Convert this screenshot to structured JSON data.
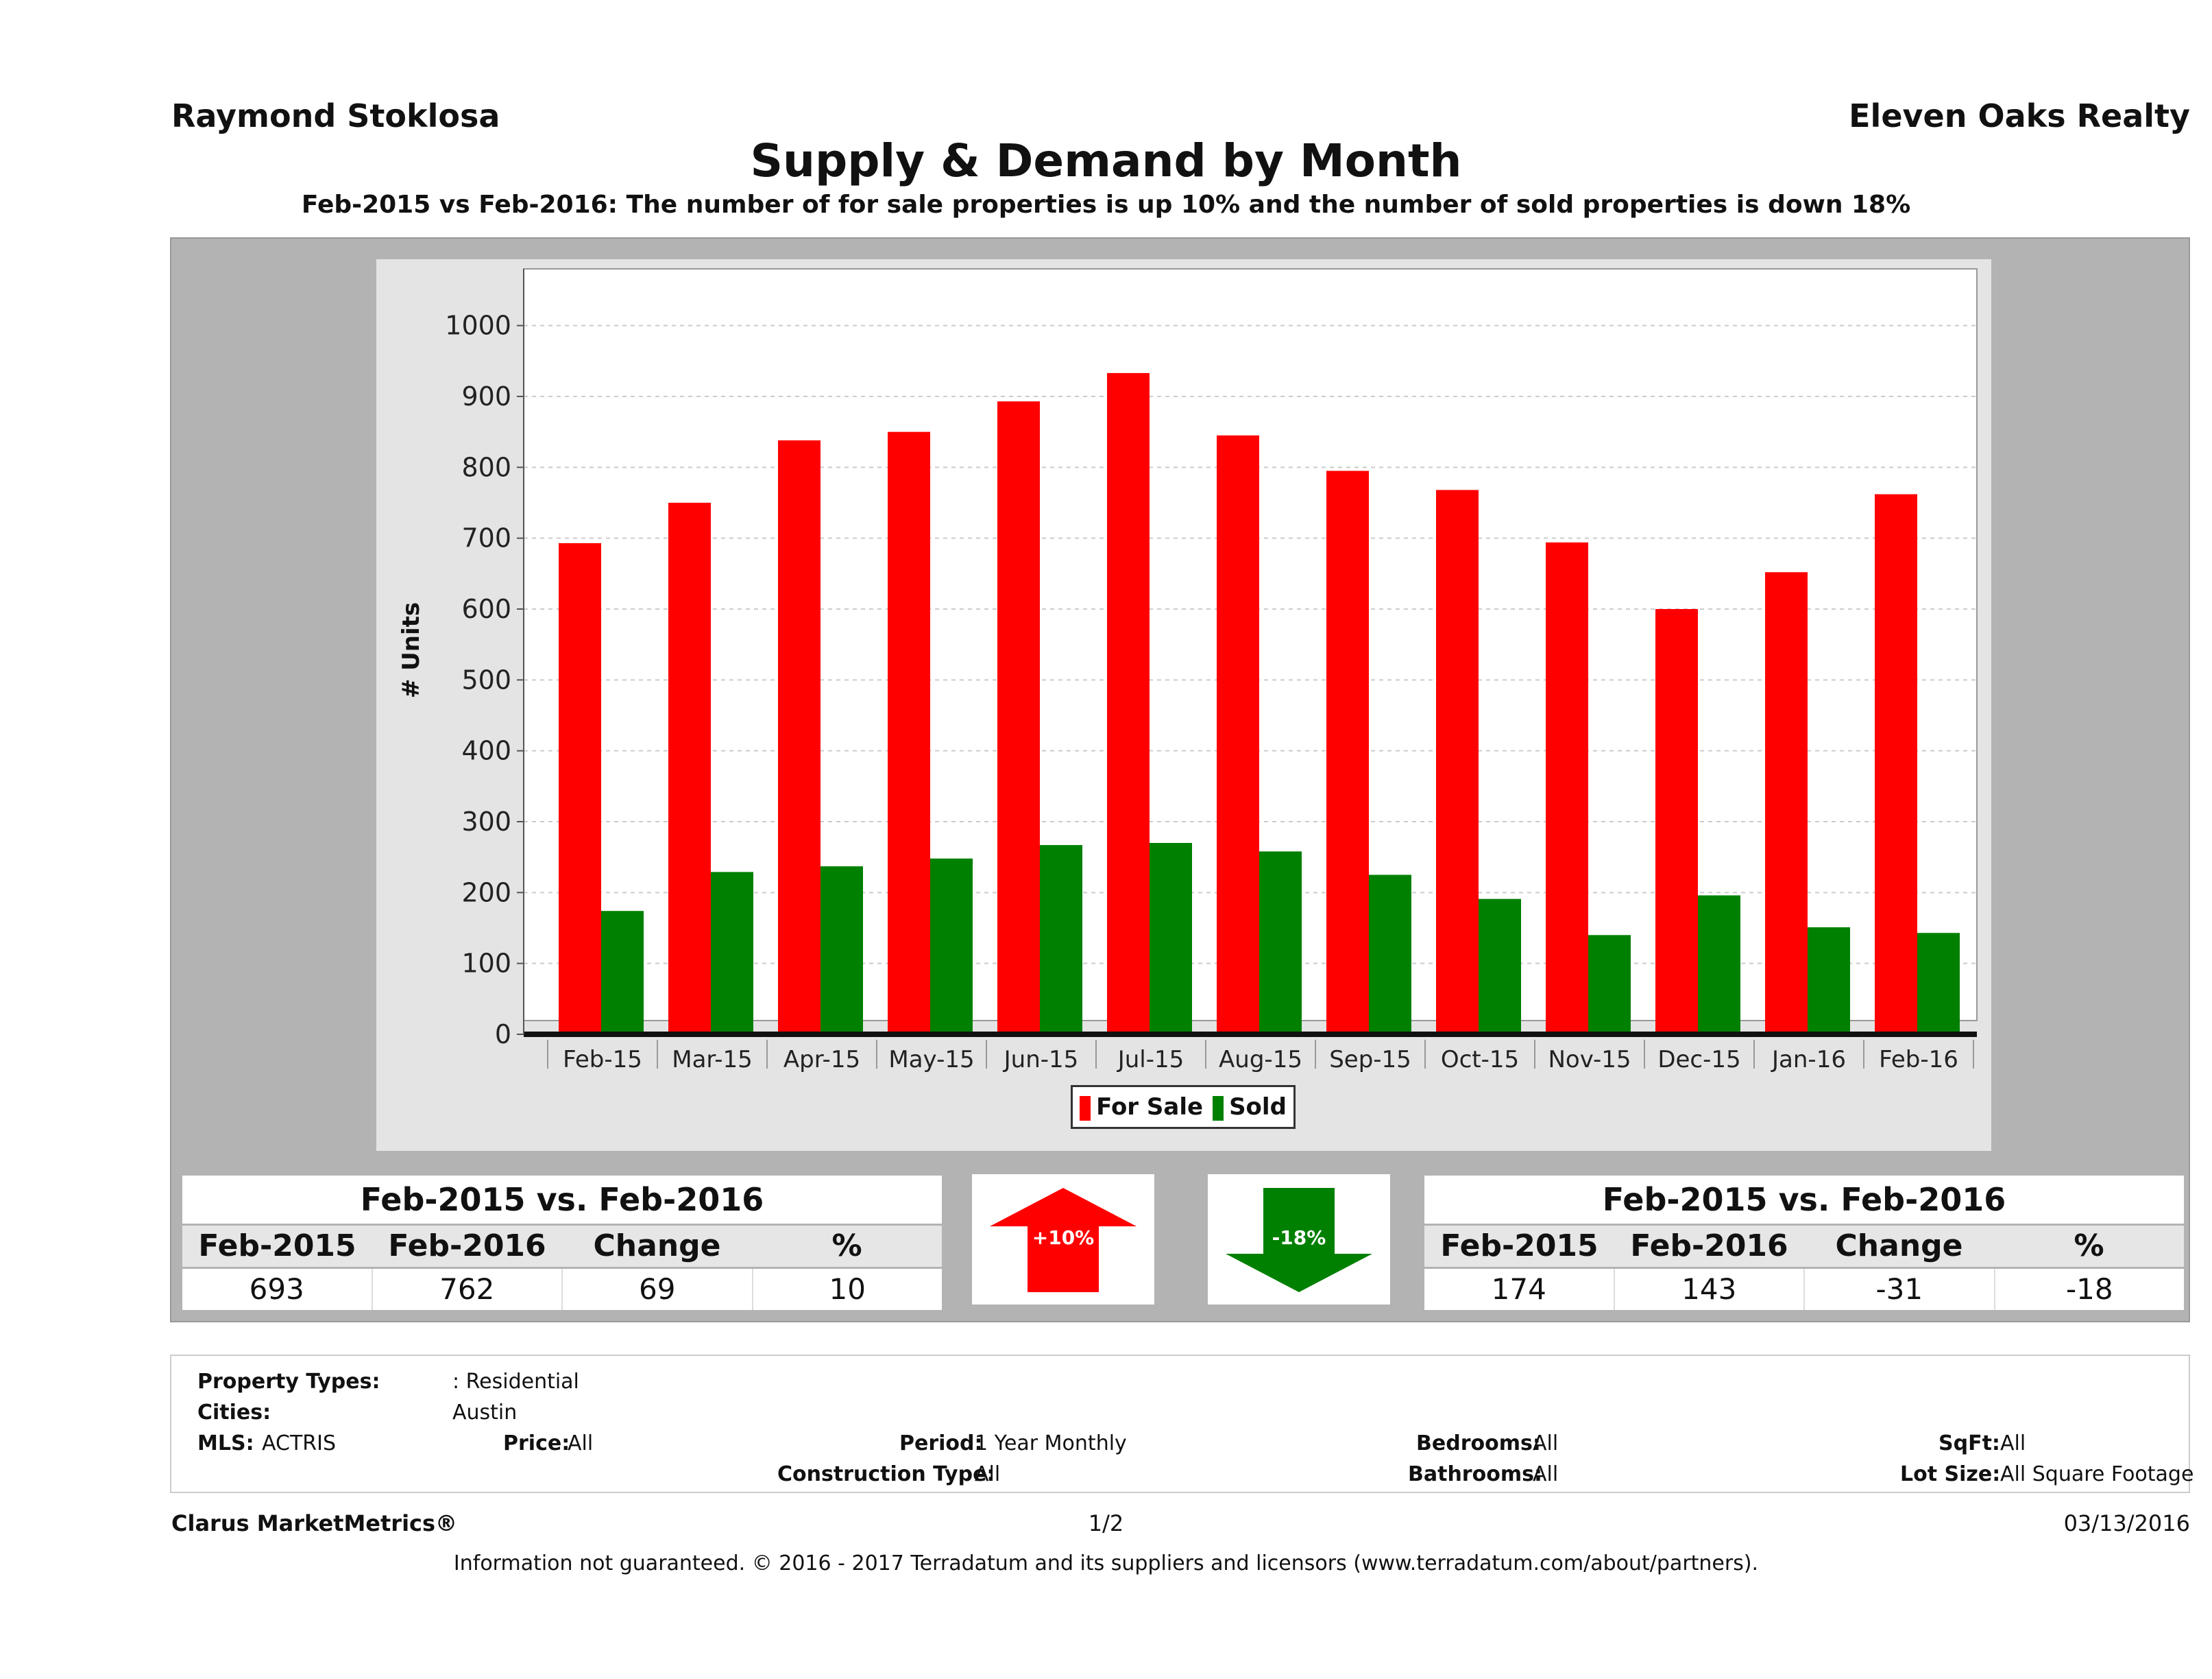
{
  "header": {
    "agent": "Raymond Stoklosa",
    "brokerage": "Eleven Oaks Realty",
    "title": "Supply & Demand by Month",
    "subtitle": "Feb-2015 vs Feb-2016: The number of for sale properties is up 10% and the number of sold properties is down 18%"
  },
  "chart_data": {
    "type": "bar",
    "categories": [
      "Feb-15",
      "Mar-15",
      "Apr-15",
      "May-15",
      "Jun-15",
      "Jul-15",
      "Aug-15",
      "Sep-15",
      "Oct-15",
      "Nov-15",
      "Dec-15",
      "Jan-16",
      "Feb-16"
    ],
    "series": [
      {
        "name": "For Sale",
        "color": "#ff0000",
        "values": [
          693,
          750,
          838,
          850,
          893,
          933,
          845,
          795,
          768,
          694,
          600,
          652,
          762
        ]
      },
      {
        "name": "Sold",
        "color": "#008000",
        "values": [
          174,
          229,
          237,
          248,
          267,
          270,
          258,
          225,
          191,
          140,
          196,
          151,
          143
        ]
      }
    ],
    "ylabel": "# Units",
    "xlabel": "",
    "ylim": [
      0,
      1080
    ],
    "yticks": [
      0,
      100,
      200,
      300,
      400,
      500,
      600,
      700,
      800,
      900,
      1000
    ],
    "grid": true,
    "legend_position": "bottom"
  },
  "legend": {
    "for_sale": "For Sale",
    "sold": "Sold"
  },
  "for_sale_table": {
    "title": "Feb-2015 vs. Feb-2016",
    "headers": [
      "Feb-2015",
      "Feb-2016",
      "Change",
      "%"
    ],
    "values": [
      "693",
      "762",
      "69",
      "10"
    ]
  },
  "sold_table": {
    "title": "Feb-2015 vs. Feb-2016",
    "headers": [
      "Feb-2015",
      "Feb-2016",
      "Change",
      "%"
    ],
    "values": [
      "174",
      "143",
      "-31",
      "-18"
    ]
  },
  "arrows": {
    "up_label": "+10%",
    "down_label": "-18%",
    "up_color": "#ff0000",
    "down_color": "#008000"
  },
  "criteria": {
    "property_types_label": "Property Types:",
    "property_types_value": ": Residential",
    "cities_label": "Cities:",
    "cities_value": "Austin",
    "mls_label": "MLS:",
    "mls_value": "ACTRIS",
    "price_label": "Price:",
    "price_value": "All",
    "period_label": "Period:",
    "period_value": "1 Year Monthly",
    "construction_label": "Construction Type:",
    "construction_value": "All",
    "bedrooms_label": "Bedrooms:",
    "bedrooms_value": "All",
    "bathrooms_label": "Bathrooms:",
    "bathrooms_value": "All",
    "sqft_label": "SqFt:",
    "sqft_value": "All",
    "lotsize_label": "Lot Size:",
    "lotsize_value": "All Square Footage"
  },
  "footer": {
    "product": "Clarus MarketMetrics®",
    "page": "1/2",
    "date": "03/13/2016",
    "disclaimer": "Information not guaranteed. © 2016 - 2017 Terradatum and its suppliers and licensors (www.terradatum.com/about/partners)."
  }
}
